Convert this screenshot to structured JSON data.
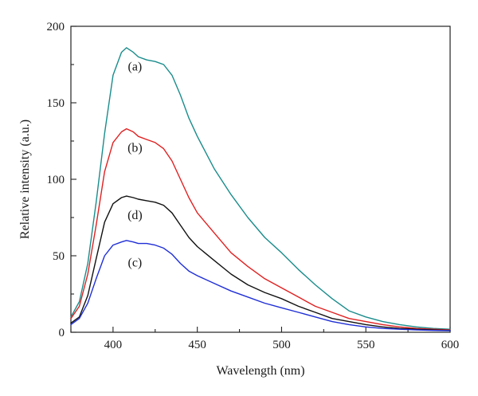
{
  "chart_data": {
    "type": "line",
    "xlabel": "Wavelength (nm)",
    "ylabel": "Relative intensity (a.u.)",
    "xlim": [
      375,
      600
    ],
    "ylim": [
      0,
      200
    ],
    "xticks": [
      400,
      450,
      500,
      550,
      600
    ],
    "yticks": [
      0,
      50,
      100,
      150,
      200
    ],
    "grid": false,
    "x": [
      375,
      380,
      385,
      390,
      395,
      400,
      405,
      408,
      412,
      415,
      420,
      425,
      430,
      435,
      440,
      445,
      450,
      460,
      470,
      480,
      490,
      500,
      510,
      520,
      530,
      540,
      550,
      560,
      570,
      580,
      590,
      600
    ],
    "series": [
      {
        "label": "(a)",
        "color": "#1a8c8c",
        "values": [
          10,
          20,
          45,
          85,
          130,
          168,
          183,
          186,
          183,
          180,
          178,
          177,
          175,
          168,
          155,
          140,
          128,
          107,
          90,
          75,
          62,
          52,
          41,
          31,
          22,
          14,
          10,
          7,
          5,
          3.5,
          2.5,
          2
        ]
      },
      {
        "label": "(b)",
        "color": "#e02020",
        "values": [
          9,
          17,
          38,
          70,
          105,
          124,
          131,
          133,
          131,
          128,
          126,
          124,
          120,
          112,
          100,
          88,
          78,
          65,
          52,
          43,
          35,
          29,
          23,
          17,
          13,
          9,
          7,
          5,
          3.5,
          2.5,
          2,
          1.5
        ]
      },
      {
        "label": "(d)",
        "color": "#111111",
        "values": [
          6,
          10,
          24,
          48,
          72,
          84,
          88,
          89,
          88,
          87,
          86,
          85,
          83,
          78,
          70,
          62,
          56,
          47,
          38,
          31,
          26,
          22,
          17,
          13,
          9,
          7,
          5,
          3.5,
          2.5,
          2,
          1.5,
          1.2
        ]
      },
      {
        "label": "(c)",
        "color": "#1f2fd6",
        "values": [
          5,
          9,
          19,
          35,
          50,
          57,
          59,
          60,
          59,
          58,
          58,
          57,
          55,
          51,
          45,
          40,
          37,
          32,
          27,
          23,
          19,
          16,
          13,
          10,
          7,
          5,
          3.5,
          2.5,
          2,
          1.5,
          1.2,
          1
        ]
      }
    ],
    "annotations": [
      {
        "text": "(a)",
        "x": 413,
        "y": 171
      },
      {
        "text": "(b)",
        "x": 413,
        "y": 118
      },
      {
        "text": "(d)",
        "x": 413,
        "y": 74
      },
      {
        "text": "(c)",
        "x": 413,
        "y": 43
      }
    ]
  }
}
